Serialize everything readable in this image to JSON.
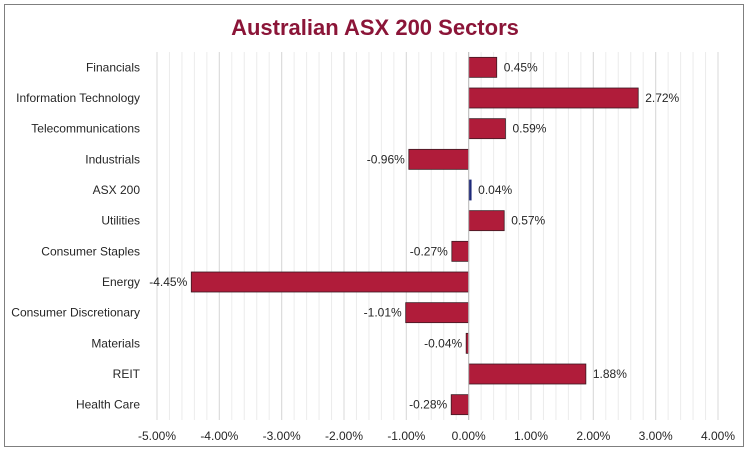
{
  "colors": {
    "bar": "#b01c3a",
    "bar_stroke": "#3a1a22",
    "highlight": "#1f2a7a",
    "title": "#8b1538",
    "grid": "#d9d9d9"
  },
  "chart_data": {
    "type": "bar",
    "orientation": "horizontal",
    "title": "Australian ASX 200 Sectors",
    "xlabel": "",
    "ylabel": "",
    "xlim": [
      -5.0,
      4.0
    ],
    "grid": true,
    "value_unit": "%",
    "x_ticks": [
      "-5.00%",
      "-4.00%",
      "-3.00%",
      "-2.00%",
      "-1.00%",
      "0.00%",
      "1.00%",
      "2.00%",
      "3.00%",
      "4.00%"
    ],
    "x_tick_values": [
      -5,
      -4,
      -3,
      -2,
      -1,
      0,
      1,
      2,
      3,
      4
    ],
    "categories": [
      "Financials",
      "Information Technology",
      "Telecommunications",
      "Industrials",
      "ASX 200",
      "Utilities",
      "Consumer Staples",
      "Energy",
      "Consumer Discretionary",
      "Materials",
      "REIT",
      "Health Care"
    ],
    "values": [
      0.45,
      2.72,
      0.59,
      -0.96,
      0.04,
      0.57,
      -0.27,
      -4.45,
      -1.01,
      -0.04,
      1.88,
      -0.28
    ],
    "data_labels": [
      "0.45%",
      "2.72%",
      "0.59%",
      "-0.96%",
      "0.04%",
      "0.57%",
      "-0.27%",
      "-4.45%",
      "-1.01%",
      "-0.04%",
      "1.88%",
      "-0.28%"
    ],
    "highlight_category": "ASX 200"
  }
}
